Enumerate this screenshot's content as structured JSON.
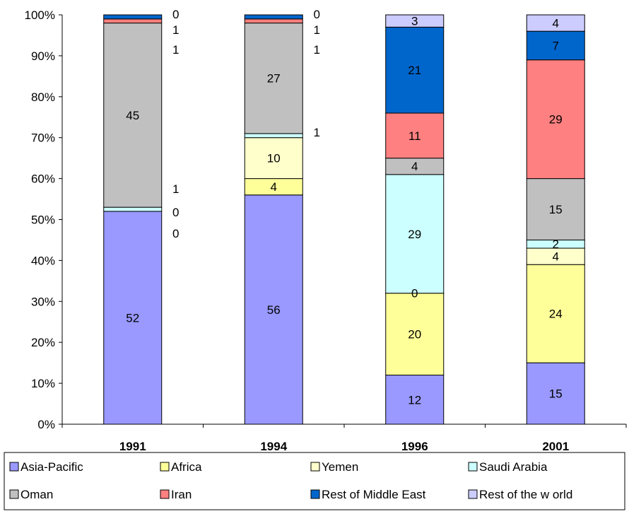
{
  "chart_data": {
    "type": "bar",
    "stacked": true,
    "percent": true,
    "title": "",
    "xlabel": "",
    "ylabel": "",
    "ylim": [
      0,
      100
    ],
    "yticks": [
      "0%",
      "10%",
      "20%",
      "30%",
      "40%",
      "50%",
      "60%",
      "70%",
      "80%",
      "90%",
      "100%"
    ],
    "categories": [
      "1991",
      "1994",
      "1996",
      "2001"
    ],
    "series": [
      {
        "name": "Asia-Pacific",
        "color": "#9999ff",
        "values": [
          52,
          56,
          12,
          15
        ]
      },
      {
        "name": "Africa",
        "color": "#ffff99",
        "values": [
          0,
          4,
          20,
          24
        ]
      },
      {
        "name": "Yemen",
        "color": "#ffffcc",
        "values": [
          0,
          10,
          0,
          4
        ]
      },
      {
        "name": "Saudi Arabia",
        "color": "#ccffff",
        "values": [
          1,
          1,
          29,
          2
        ]
      },
      {
        "name": "Oman",
        "color": "#c0c0c0",
        "values": [
          45,
          27,
          4,
          15
        ]
      },
      {
        "name": "Iran",
        "color": "#ff8080",
        "values": [
          1,
          1,
          11,
          29
        ]
      },
      {
        "name": "Rest of Middle East",
        "color": "#0066cc",
        "values": [
          1,
          1,
          21,
          7
        ]
      },
      {
        "name": "Rest of the w orld",
        "color": "#ccccff",
        "values": [
          0,
          0,
          3,
          4
        ]
      }
    ],
    "grid": false,
    "legend_position": "bottom"
  }
}
